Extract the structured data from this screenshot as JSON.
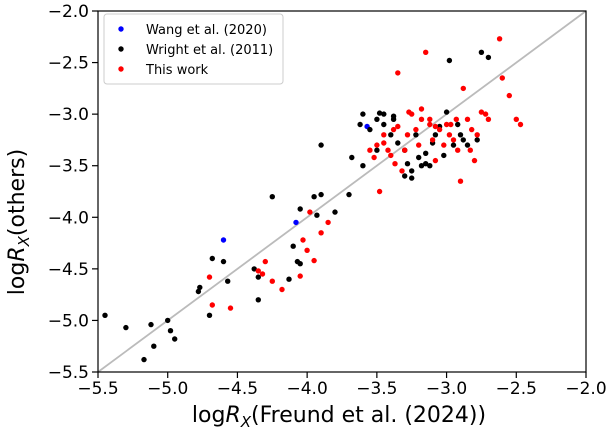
{
  "chart_data": {
    "type": "scatter",
    "xlabel_prefix": "log",
    "xlabel_var": "R",
    "xlabel_sub": "X",
    "xlabel_suffix": "(Freund et al. (2024))",
    "ylabel_prefix": "log",
    "ylabel_var": "R",
    "ylabel_sub": "X",
    "ylabel_suffix": "(others)",
    "xlim": [
      -5.5,
      -2.0
    ],
    "ylim": [
      -5.5,
      -2.0
    ],
    "xticks": [
      "−5.5",
      "−5.0",
      "−4.5",
      "−4.0",
      "−3.5",
      "−3.0",
      "−2.5",
      "−2.0"
    ],
    "yticks": [
      "−5.5",
      "−5.0",
      "−4.5",
      "−4.0",
      "−3.5",
      "−3.0",
      "−2.5",
      "−2.0"
    ],
    "tick_values": [
      -5.5,
      -5.0,
      -4.5,
      -4.0,
      -3.5,
      -3.0,
      -2.5,
      -2.0
    ],
    "reference_line": {
      "x": [
        -5.5,
        -2.0
      ],
      "y": [
        -5.5,
        -2.0
      ],
      "color": "#bbbbbb"
    },
    "legend_position": "top-left",
    "series": [
      {
        "name": "Wang et al. (2020)",
        "color": "#0000ff",
        "points": [
          [
            -4.6,
            -4.22
          ],
          [
            -4.08,
            -4.05
          ],
          [
            -3.57,
            -3.12
          ]
        ]
      },
      {
        "name": "Wright et al. (2011)",
        "color": "#000000",
        "points": [
          [
            -5.45,
            -4.95
          ],
          [
            -5.3,
            -5.07
          ],
          [
            -5.17,
            -5.38
          ],
          [
            -5.12,
            -5.04
          ],
          [
            -5.1,
            -5.25
          ],
          [
            -5.0,
            -5.0
          ],
          [
            -4.98,
            -5.1
          ],
          [
            -4.95,
            -5.18
          ],
          [
            -4.78,
            -4.72
          ],
          [
            -4.77,
            -4.68
          ],
          [
            -4.7,
            -4.95
          ],
          [
            -4.68,
            -4.4
          ],
          [
            -4.6,
            -4.43
          ],
          [
            -4.57,
            -4.62
          ],
          [
            -4.38,
            -4.5
          ],
          [
            -4.35,
            -4.58
          ],
          [
            -4.35,
            -4.8
          ],
          [
            -4.25,
            -3.8
          ],
          [
            -4.13,
            -4.6
          ],
          [
            -4.1,
            -4.28
          ],
          [
            -4.07,
            -4.43
          ],
          [
            -4.05,
            -4.45
          ],
          [
            -4.05,
            -3.92
          ],
          [
            -3.95,
            -3.8
          ],
          [
            -3.93,
            -3.98
          ],
          [
            -3.9,
            -3.78
          ],
          [
            -3.9,
            -3.3
          ],
          [
            -3.8,
            -3.95
          ],
          [
            -3.7,
            -3.78
          ],
          [
            -3.68,
            -3.42
          ],
          [
            -3.62,
            -3.1
          ],
          [
            -3.6,
            -3.0
          ],
          [
            -3.55,
            -3.15
          ],
          [
            -3.5,
            -3.05
          ],
          [
            -3.48,
            -2.99
          ],
          [
            -3.45,
            -3.1
          ],
          [
            -3.4,
            -3.2
          ],
          [
            -3.38,
            -3.05
          ],
          [
            -3.35,
            -3.28
          ],
          [
            -3.3,
            -3.35
          ],
          [
            -3.28,
            -3.48
          ],
          [
            -3.25,
            -3.55
          ],
          [
            -3.22,
            -3.2
          ],
          [
            -3.2,
            -3.42
          ],
          [
            -3.18,
            -3.5
          ],
          [
            -3.15,
            -3.38
          ],
          [
            -3.12,
            -3.5
          ],
          [
            -3.1,
            -3.28
          ],
          [
            -3.08,
            -3.2
          ],
          [
            -3.05,
            -3.12
          ],
          [
            -3.02,
            -3.4
          ],
          [
            -3.0,
            -2.98
          ],
          [
            -2.98,
            -2.48
          ],
          [
            -2.95,
            -3.3
          ],
          [
            -2.92,
            -3.1
          ],
          [
            -2.9,
            -3.2
          ],
          [
            -2.88,
            -3.25
          ],
          [
            -2.85,
            -3.3
          ],
          [
            -2.78,
            -3.25
          ],
          [
            -2.75,
            -2.4
          ],
          [
            -2.7,
            -2.45
          ],
          [
            -3.6,
            -3.5
          ],
          [
            -3.5,
            -3.35
          ],
          [
            -3.45,
            -3.0
          ],
          [
            -3.3,
            -3.6
          ],
          [
            -3.25,
            -3.62
          ],
          [
            -3.38,
            -3.02
          ],
          [
            -3.15,
            -3.48
          ]
        ]
      },
      {
        "name": "This work",
        "color": "#ff0000",
        "points": [
          [
            -4.7,
            -4.58
          ],
          [
            -4.68,
            -4.85
          ],
          [
            -4.55,
            -4.88
          ],
          [
            -4.35,
            -4.52
          ],
          [
            -4.32,
            -4.55
          ],
          [
            -4.3,
            -4.43
          ],
          [
            -4.25,
            -4.62
          ],
          [
            -4.18,
            -4.7
          ],
          [
            -4.05,
            -4.57
          ],
          [
            -4.03,
            -4.22
          ],
          [
            -4.0,
            -4.32
          ],
          [
            -3.98,
            -3.95
          ],
          [
            -3.95,
            -4.42
          ],
          [
            -3.9,
            -4.15
          ],
          [
            -3.85,
            -4.05
          ],
          [
            -3.52,
            -3.42
          ],
          [
            -3.48,
            -3.75
          ],
          [
            -3.45,
            -3.28
          ],
          [
            -3.42,
            -3.35
          ],
          [
            -3.4,
            -3.4
          ],
          [
            -3.38,
            -3.15
          ],
          [
            -3.35,
            -3.12
          ],
          [
            -3.35,
            -2.6
          ],
          [
            -3.32,
            -3.55
          ],
          [
            -3.3,
            -3.35
          ],
          [
            -3.28,
            -3.2
          ],
          [
            -3.25,
            -3.0
          ],
          [
            -3.22,
            -3.15
          ],
          [
            -3.2,
            -3.3
          ],
          [
            -3.18,
            -3.05
          ],
          [
            -3.15,
            -2.4
          ],
          [
            -3.12,
            -3.1
          ],
          [
            -3.1,
            -3.25
          ],
          [
            -3.08,
            -3.45
          ],
          [
            -3.05,
            -3.15
          ],
          [
            -3.02,
            -3.3
          ],
          [
            -3.0,
            -3.1
          ],
          [
            -2.98,
            -3.2
          ],
          [
            -2.95,
            -3.25
          ],
          [
            -2.92,
            -3.35
          ],
          [
            -2.9,
            -3.65
          ],
          [
            -2.88,
            -2.75
          ],
          [
            -2.85,
            -3.05
          ],
          [
            -2.82,
            -3.15
          ],
          [
            -2.8,
            -3.45
          ],
          [
            -2.78,
            -3.2
          ],
          [
            -2.75,
            -2.98
          ],
          [
            -2.72,
            -3.0
          ],
          [
            -2.7,
            -3.05
          ],
          [
            -2.62,
            -2.27
          ],
          [
            -2.6,
            -2.65
          ],
          [
            -2.55,
            -2.82
          ],
          [
            -2.5,
            -3.05
          ],
          [
            -2.47,
            -3.1
          ],
          [
            -3.5,
            -3.3
          ],
          [
            -3.45,
            -3.2
          ],
          [
            -3.37,
            -3.48
          ],
          [
            -3.27,
            -2.98
          ],
          [
            -3.18,
            -2.95
          ],
          [
            -3.12,
            -3.05
          ],
          [
            -3.08,
            -3.12
          ],
          [
            -2.97,
            -3.1
          ],
          [
            -2.93,
            -3.05
          ],
          [
            -2.83,
            -3.35
          ],
          [
            -3.55,
            -3.35
          ]
        ]
      }
    ]
  }
}
